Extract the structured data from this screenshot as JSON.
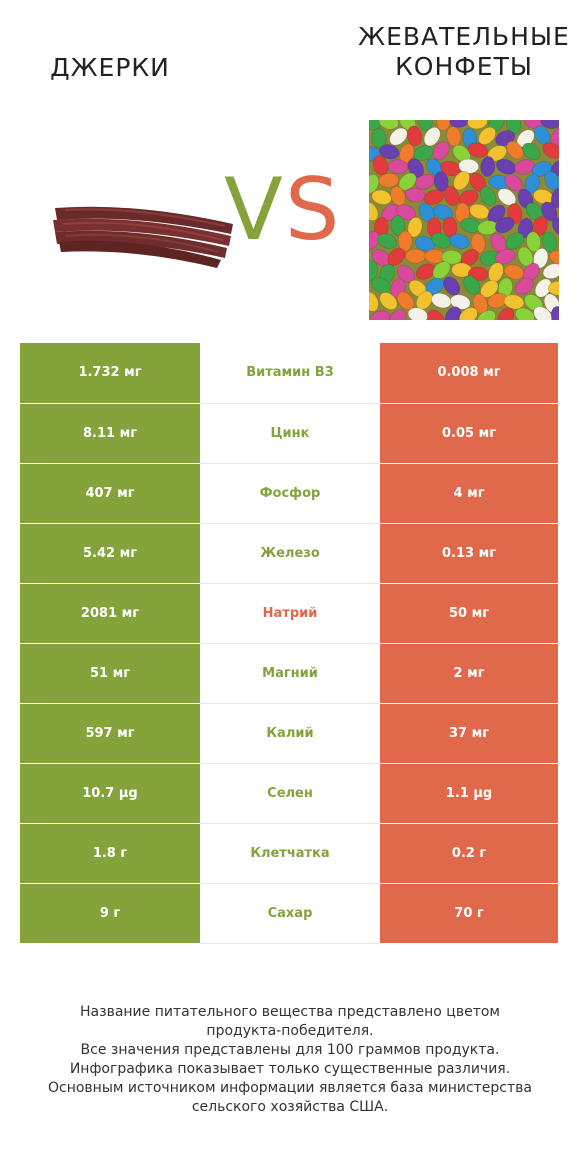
{
  "header": {
    "left_title": "ДЖЕРКИ",
    "right_title_line1": "ЖЕВАТЕЛЬНЫЕ",
    "right_title_line2": "КОНФЕТЫ",
    "vs_v": "V",
    "vs_s": "S"
  },
  "colors": {
    "left_accent": "#84a33a",
    "right_accent": "#e0694b"
  },
  "chart_data": {
    "type": "table",
    "columns": [
      "ДЖЕРКИ",
      "",
      "ЖЕВАТЕЛЬНЫЕ КОНФЕТЫ"
    ],
    "rows": [
      {
        "nutrient": "Витамин B3",
        "left": "1.732 мг",
        "right": "0.008 мг",
        "winner": "left"
      },
      {
        "nutrient": "Цинк",
        "left": "8.11 мг",
        "right": "0.05 мг",
        "winner": "left"
      },
      {
        "nutrient": "Фосфор",
        "left": "407 мг",
        "right": "4 мг",
        "winner": "left"
      },
      {
        "nutrient": "Железо",
        "left": "5.42 мг",
        "right": "0.13 мг",
        "winner": "left"
      },
      {
        "nutrient": "Натрий",
        "left": "2081 мг",
        "right": "50 мг",
        "winner": "right"
      },
      {
        "nutrient": "Магний",
        "left": "51 мг",
        "right": "2 мг",
        "winner": "left"
      },
      {
        "nutrient": "Калий",
        "left": "597 мг",
        "right": "37 мг",
        "winner": "left"
      },
      {
        "nutrient": "Селен",
        "left": "10.7 µg",
        "right": "1.1 µg",
        "winner": "left"
      },
      {
        "nutrient": "Клетчатка",
        "left": "1.8 г",
        "right": "0.2 г",
        "winner": "left"
      },
      {
        "nutrient": "Сахар",
        "left": "9 г",
        "right": "70 г",
        "winner": "left"
      }
    ]
  },
  "footer": {
    "line1": "Название питательного вещества представлено цветом",
    "line2": "продукта-победителя.",
    "line3": "Все значения представлены для 100 граммов продукта.",
    "line4": "Инфографика показывает только существенные различия.",
    "line5": "Основным источником информации является база министерства",
    "line6": "сельского хозяйства США."
  }
}
